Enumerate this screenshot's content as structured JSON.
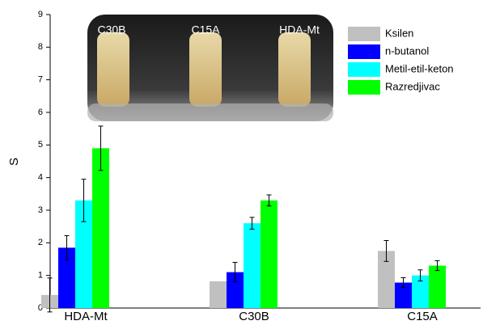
{
  "chart_data": {
    "type": "bar",
    "y_label": "S",
    "categories": [
      "HDA-Mt",
      "C30B",
      "C15A"
    ],
    "series": [
      {
        "name": "Ksilen",
        "color": "#c0c0c0",
        "values": [
          0.4,
          0.82,
          1.75
        ],
        "errors": [
          0.52,
          null,
          0.32
        ]
      },
      {
        "name": "n-butanol",
        "color": "#0000ff",
        "values": [
          1.85,
          1.1,
          0.78
        ],
        "errors": [
          0.37,
          0.3,
          0.15
        ]
      },
      {
        "name": "Metil-etil-keton",
        "color": "#00ffff",
        "values": [
          3.3,
          2.6,
          1.0
        ],
        "errors": [
          0.65,
          0.18,
          0.17
        ]
      },
      {
        "name": "Razredjivac",
        "color": "#00ff00",
        "values": [
          4.9,
          3.3,
          1.3
        ],
        "errors": [
          0.68,
          0.17,
          0.15
        ]
      }
    ],
    "ylim": [
      0,
      9
    ],
    "yticks": [
      0,
      1,
      2,
      3,
      4,
      5,
      6,
      7,
      8,
      9
    ],
    "inset_labels": [
      "C30B",
      "C15A",
      "HDA-Mt"
    ]
  }
}
